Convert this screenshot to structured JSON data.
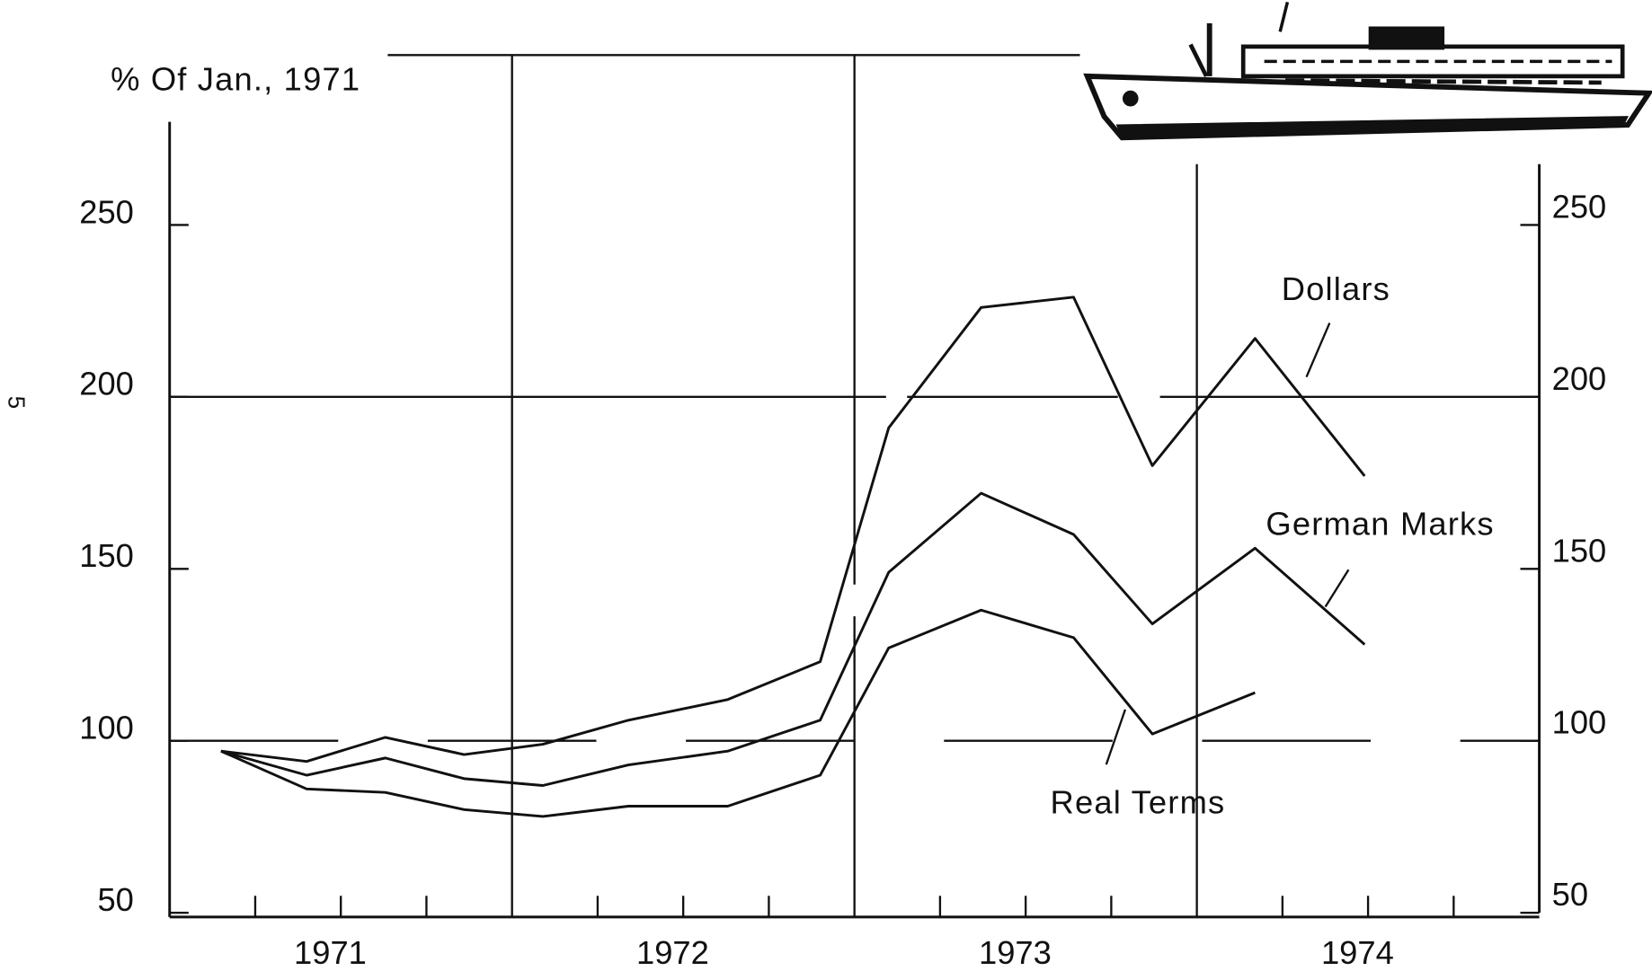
{
  "page_number": "5",
  "chart_data": {
    "type": "line",
    "ylabel": "% Of Jan., 1971",
    "x": [
      1971.15,
      1971.4,
      1971.63,
      1971.86,
      1972.09,
      1972.34,
      1972.63,
      1972.9,
      1973.1,
      1973.37,
      1973.64,
      1973.87,
      1974.17,
      1974.49
    ],
    "series": [
      {
        "name": "Dollars",
        "color": "#111111",
        "values": [
          97,
          94,
          101,
          96,
          99,
          106,
          112,
          123,
          191,
          226,
          229,
          180,
          217,
          177
        ]
      },
      {
        "name": "German Marks",
        "color": "#111111",
        "values": [
          97,
          90,
          95,
          89,
          87,
          93,
          97,
          106,
          149,
          172,
          160,
          134,
          156,
          128
        ]
      },
      {
        "name": "Real Terms",
        "color": "#111111",
        "values": [
          97,
          86,
          85,
          80,
          78,
          81,
          81,
          90,
          127,
          138,
          130,
          102,
          114,
          null
        ]
      }
    ],
    "xlim": [
      1971,
      1975
    ],
    "xticks": [
      {
        "value": 1971.5,
        "label": "1971"
      },
      {
        "value": 1972.5,
        "label": "1972"
      },
      {
        "value": 1973.5,
        "label": "1973"
      },
      {
        "value": 1974.5,
        "label": "1974"
      }
    ],
    "xminorticks": [
      1971.25,
      1971.5,
      1971.75,
      1972.25,
      1972.5,
      1972.75,
      1973.25,
      1973.5,
      1973.75,
      1974.25,
      1974.5,
      1974.75
    ],
    "vgrid": [
      1972,
      1973,
      1974
    ],
    "ylim": [
      50,
      280
    ],
    "yticks": [
      50,
      100,
      150,
      200,
      250
    ],
    "hgrid": [
      100,
      200
    ]
  }
}
